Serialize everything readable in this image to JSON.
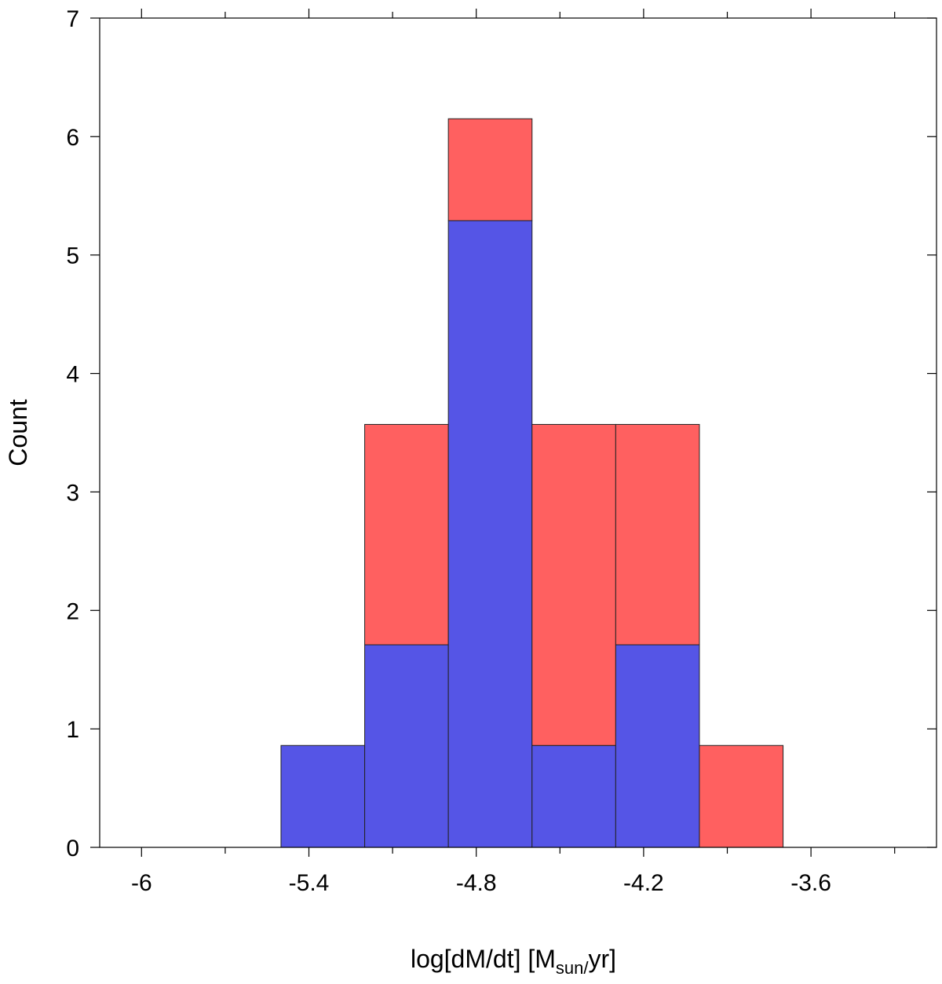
{
  "chart_data": {
    "type": "bar",
    "stacked": true,
    "bin_edges": [
      -5.5,
      -5.2,
      -4.9,
      -4.6,
      -4.3,
      -4.0,
      -3.7
    ],
    "series": [
      {
        "color": "#5555e6",
        "values": [
          0.86,
          1.71,
          5.29,
          0.86,
          1.71,
          0
        ]
      },
      {
        "color": "#ff6060",
        "values": [
          0,
          1.86,
          0.86,
          2.71,
          1.86,
          0.86
        ]
      }
    ],
    "xlim": [
      -6.15,
      -3.15
    ],
    "ylim": [
      0,
      7
    ],
    "x_ticks": [
      -6,
      -5.4,
      -4.8,
      -4.2,
      -3.6
    ],
    "x_tick_labels": [
      "-6",
      "-5.4",
      "-4.8",
      "-4.2",
      "-3.6"
    ],
    "x_minor_ticks": [
      -5.7,
      -5.1,
      -4.5,
      -3.9,
      -3.3
    ],
    "y_ticks": [
      0,
      1,
      2,
      3,
      4,
      5,
      6,
      7
    ],
    "y_tick_labels": [
      "0",
      "1",
      "2",
      "3",
      "4",
      "5",
      "6",
      "7"
    ],
    "xlabel": {
      "main": "log[dM/dt] [M",
      "sub": "sun/",
      "end": "yr]"
    },
    "ylabel": "Count",
    "grid": false
  }
}
